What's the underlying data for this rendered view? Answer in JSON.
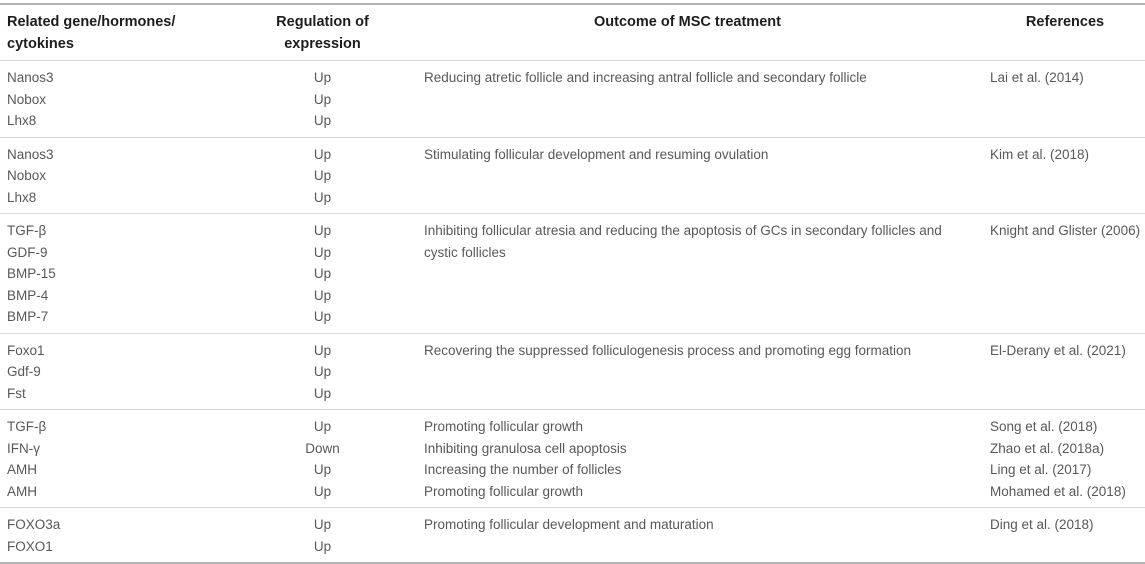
{
  "page": {
    "background": "#ffffff"
  },
  "table": {
    "columns": [
      {
        "id": "genes",
        "label": "Related gene/hormones/\ncytokines"
      },
      {
        "id": "regulation",
        "label": "Regulation of\nexpression"
      },
      {
        "id": "outcome",
        "label": "Outcome of MSC treatment"
      },
      {
        "id": "references",
        "label": "References"
      }
    ],
    "groups": [
      {
        "genes": [
          "Nanos3",
          "Nobox",
          "Lhx8"
        ],
        "regulation": [
          "Up",
          "Up",
          "Up"
        ],
        "outcomes": [
          "Reducing atretic follicle and increasing antral follicle and secondary follicle"
        ],
        "references": [
          "Lai et al. (2014)"
        ]
      },
      {
        "genes": [
          "Nanos3",
          "Nobox",
          "Lhx8"
        ],
        "regulation": [
          "Up",
          "Up",
          "Up"
        ],
        "outcomes": [
          "Stimulating follicular development and resuming ovulation"
        ],
        "references": [
          "Kim et al. (2018)"
        ]
      },
      {
        "genes": [
          "TGF-β",
          "GDF-9",
          "BMP-15",
          "BMP-4",
          "BMP-7"
        ],
        "regulation": [
          "Up",
          "Up",
          "Up",
          "Up",
          "Up"
        ],
        "outcomes": [
          "Inhibiting follicular atresia and reducing the apoptosis of GCs in secondary follicles and cystic follicles"
        ],
        "references": [
          "Knight and Glister (2006)"
        ]
      },
      {
        "genes": [
          "Foxo1",
          "Gdf-9",
          "Fst"
        ],
        "regulation": [
          "Up",
          "Up",
          "Up"
        ],
        "outcomes": [
          "Recovering the suppressed folliculogenesis process and promoting egg formation"
        ],
        "references": [
          "El-Derany et al. (2021)"
        ]
      },
      {
        "genes": [
          "TGF-β",
          "IFN-γ",
          "AMH",
          "AMH"
        ],
        "regulation": [
          "Up",
          "Down",
          "Up",
          "Up"
        ],
        "outcomes": [
          "Promoting follicular growth",
          "Inhibiting granulosa cell apoptosis",
          "Increasing the number of follicles",
          "Promoting follicular growth"
        ],
        "references": [
          "Song et al. (2018)",
          "Zhao et al. (2018a)",
          "Ling et al. (2017)",
          "Mohamed et al. (2018)"
        ]
      },
      {
        "genes": [
          "FOXO3a",
          "FOXO1"
        ],
        "regulation": [
          "Up",
          "Up"
        ],
        "outcomes": [
          "Promoting follicular development and maturation"
        ],
        "references": [
          "Ding et al. (2018)"
        ]
      }
    ],
    "colors": {
      "header_text": "#1d1d1f",
      "body_text": "#58585a",
      "rule_heavy": "#b3b3b3",
      "rule_light": "#dadada"
    }
  }
}
